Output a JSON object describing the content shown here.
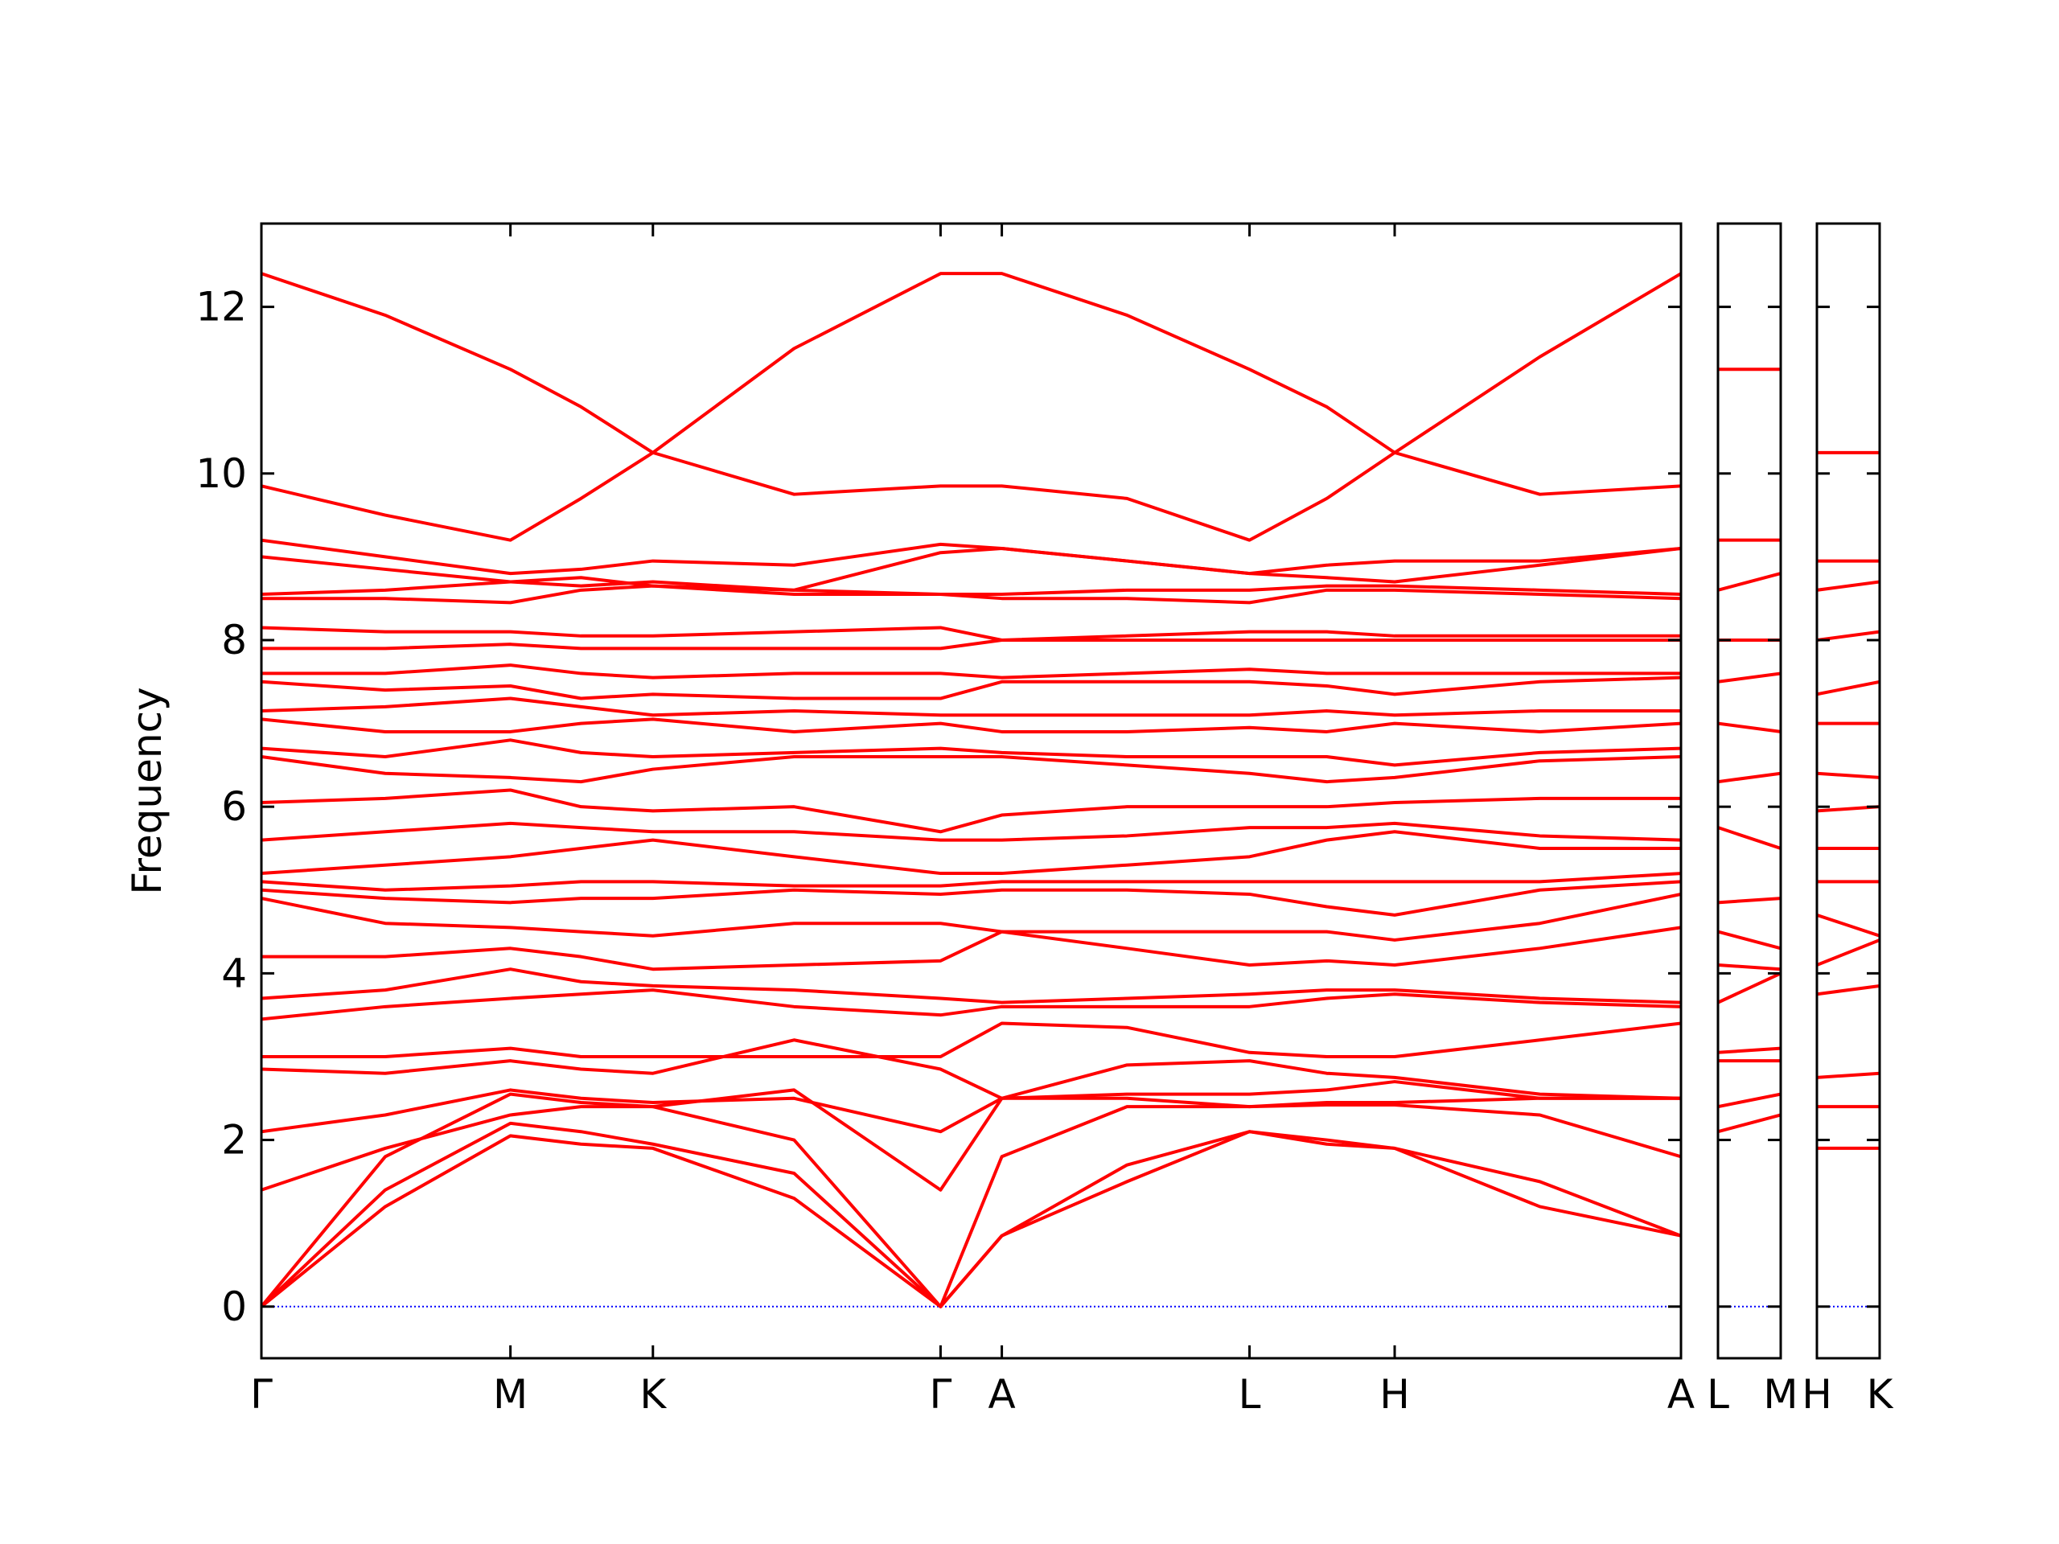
{
  "chart_data": [
    {
      "type": "line",
      "ylabel": "Frequency",
      "color": "#ff0000",
      "show_ytick_labels": true,
      "zero_line": {
        "y": 0,
        "color": "#0000ff"
      },
      "xlim": [
        0,
        10.66
      ],
      "ylim": [
        -0.62,
        13
      ],
      "yticks": [
        0,
        2,
        4,
        6,
        8,
        10,
        12
      ],
      "xticks": [
        {
          "value": 0,
          "label": "Γ"
        },
        {
          "value": 1.87,
          "label": "M"
        },
        {
          "value": 2.94,
          "label": "K"
        },
        {
          "value": 5.1,
          "label": "Γ"
        },
        {
          "value": 5.56,
          "label": "A"
        },
        {
          "value": 7.42,
          "label": "L"
        },
        {
          "value": 8.51,
          "label": "H"
        },
        {
          "value": 10.66,
          "label": "A"
        }
      ],
      "x": [
        0,
        0.93,
        1.87,
        2.4,
        2.94,
        4.0,
        5.1,
        5.56,
        6.5,
        7.42,
        8.0,
        8.51,
        9.6,
        10.66
      ],
      "series": [
        {
          "values": [
            0,
            1.2,
            2.05,
            1.95,
            1.9,
            1.3,
            0,
            0.85,
            1.5,
            2.1,
            1.95,
            1.9,
            1.5,
            0.85
          ]
        },
        {
          "values": [
            0,
            1.4,
            2.2,
            2.1,
            1.95,
            1.6,
            0,
            0.85,
            1.7,
            2.1,
            2.0,
            1.9,
            1.2,
            0.85
          ]
        },
        {
          "values": [
            0,
            1.8,
            2.55,
            2.45,
            2.4,
            2.0,
            0,
            1.8,
            2.4,
            2.4,
            2.42,
            2.42,
            2.3,
            1.8
          ]
        },
        {
          "values": [
            1.4,
            1.9,
            2.3,
            2.4,
            2.4,
            2.6,
            1.4,
            2.5,
            2.5,
            2.4,
            2.45,
            2.45,
            2.5,
            2.5
          ]
        },
        {
          "values": [
            2.1,
            2.3,
            2.6,
            2.5,
            2.45,
            2.5,
            2.1,
            2.5,
            2.55,
            2.55,
            2.6,
            2.7,
            2.5,
            2.5
          ]
        },
        {
          "values": [
            2.85,
            2.8,
            2.95,
            2.85,
            2.8,
            3.2,
            2.85,
            2.5,
            2.9,
            2.95,
            2.8,
            2.75,
            2.55,
            2.5
          ]
        },
        {
          "values": [
            3.0,
            3.0,
            3.1,
            3.0,
            3.0,
            3.0,
            3.0,
            3.4,
            3.35,
            3.05,
            3.0,
            3.0,
            3.2,
            3.4
          ]
        },
        {
          "values": [
            3.45,
            3.6,
            3.7,
            3.75,
            3.8,
            3.6,
            3.5,
            3.6,
            3.6,
            3.6,
            3.7,
            3.75,
            3.65,
            3.6
          ]
        },
        {
          "values": [
            3.7,
            3.8,
            4.05,
            3.9,
            3.85,
            3.8,
            3.7,
            3.65,
            3.7,
            3.75,
            3.8,
            3.8,
            3.7,
            3.65
          ]
        },
        {
          "values": [
            4.2,
            4.2,
            4.3,
            4.2,
            4.05,
            4.1,
            4.15,
            4.5,
            4.3,
            4.1,
            4.15,
            4.1,
            4.3,
            4.55
          ]
        },
        {
          "values": [
            4.9,
            4.6,
            4.55,
            4.5,
            4.45,
            4.6,
            4.6,
            4.5,
            4.5,
            4.5,
            4.5,
            4.4,
            4.6,
            4.95
          ]
        },
        {
          "values": [
            5.0,
            4.9,
            4.85,
            4.9,
            4.9,
            5.0,
            4.95,
            5.0,
            5.0,
            4.95,
            4.8,
            4.7,
            5.0,
            5.1
          ]
        },
        {
          "values": [
            5.1,
            5.0,
            5.05,
            5.1,
            5.1,
            5.05,
            5.05,
            5.1,
            5.1,
            5.1,
            5.1,
            5.1,
            5.1,
            5.2
          ]
        },
        {
          "values": [
            5.2,
            5.3,
            5.4,
            5.5,
            5.6,
            5.4,
            5.2,
            5.2,
            5.3,
            5.4,
            5.6,
            5.7,
            5.5,
            5.5
          ]
        },
        {
          "values": [
            5.6,
            5.7,
            5.8,
            5.75,
            5.7,
            5.7,
            5.6,
            5.6,
            5.65,
            5.75,
            5.75,
            5.8,
            5.65,
            5.6
          ]
        },
        {
          "values": [
            6.05,
            6.1,
            6.2,
            6.0,
            5.95,
            6.0,
            5.7,
            5.9,
            6.0,
            6.0,
            6.0,
            6.05,
            6.1,
            6.1
          ]
        },
        {
          "values": [
            6.6,
            6.4,
            6.35,
            6.3,
            6.45,
            6.6,
            6.6,
            6.6,
            6.5,
            6.4,
            6.3,
            6.35,
            6.55,
            6.6
          ]
        },
        {
          "values": [
            6.7,
            6.6,
            6.8,
            6.65,
            6.6,
            6.65,
            6.7,
            6.65,
            6.6,
            6.6,
            6.6,
            6.5,
            6.65,
            6.7
          ]
        },
        {
          "values": [
            7.05,
            6.9,
            6.9,
            7.0,
            7.05,
            6.9,
            7.0,
            6.9,
            6.9,
            6.95,
            6.9,
            7.0,
            6.9,
            7.0
          ]
        },
        {
          "values": [
            7.15,
            7.2,
            7.3,
            7.2,
            7.1,
            7.15,
            7.1,
            7.1,
            7.1,
            7.1,
            7.15,
            7.1,
            7.15,
            7.15
          ]
        },
        {
          "values": [
            7.5,
            7.4,
            7.45,
            7.3,
            7.35,
            7.3,
            7.3,
            7.5,
            7.5,
            7.5,
            7.45,
            7.35,
            7.5,
            7.55
          ]
        },
        {
          "values": [
            7.6,
            7.6,
            7.7,
            7.6,
            7.55,
            7.6,
            7.6,
            7.55,
            7.6,
            7.65,
            7.6,
            7.6,
            7.6,
            7.6
          ]
        },
        {
          "values": [
            7.9,
            7.9,
            7.95,
            7.9,
            7.9,
            7.9,
            7.9,
            8.0,
            8.0,
            8.0,
            8.0,
            8.0,
            8.0,
            8.0
          ]
        },
        {
          "values": [
            8.15,
            8.1,
            8.1,
            8.05,
            8.05,
            8.1,
            8.15,
            8.0,
            8.05,
            8.1,
            8.1,
            8.05,
            8.05,
            8.05
          ]
        },
        {
          "values": [
            8.5,
            8.5,
            8.45,
            8.6,
            8.65,
            8.55,
            8.55,
            8.55,
            8.6,
            8.6,
            8.65,
            8.65,
            8.6,
            8.55
          ]
        },
        {
          "values": [
            8.55,
            8.6,
            8.7,
            8.65,
            8.7,
            8.6,
            8.55,
            8.5,
            8.5,
            8.45,
            8.6,
            8.6,
            8.55,
            8.5
          ]
        },
        {
          "values": [
            9.0,
            8.85,
            8.7,
            8.75,
            8.65,
            8.6,
            9.05,
            9.1,
            8.95,
            8.8,
            8.75,
            8.7,
            8.9,
            9.1
          ]
        },
        {
          "values": [
            9.2,
            9.0,
            8.8,
            8.85,
            8.95,
            8.9,
            9.15,
            9.1,
            8.95,
            8.8,
            8.9,
            8.95,
            8.95,
            9.1
          ]
        },
        {
          "values": [
            9.85,
            9.5,
            9.2,
            9.7,
            10.25,
            9.75,
            9.85,
            9.85,
            9.7,
            9.2,
            9.7,
            10.25,
            9.75,
            9.85
          ]
        },
        {
          "values": [
            12.4,
            11.9,
            11.25,
            10.8,
            10.25,
            11.5,
            12.4,
            12.4,
            11.9,
            11.25,
            10.8,
            10.25,
            11.4,
            12.4
          ]
        }
      ]
    },
    {
      "type": "line",
      "color": "#ff0000",
      "show_ytick_labels": false,
      "zero_line": {
        "y": 0,
        "color": "#0000ff"
      },
      "xlim": [
        0,
        0.47
      ],
      "ylim": [
        -0.62,
        13
      ],
      "yticks": [
        0,
        2,
        4,
        6,
        8,
        10,
        12
      ],
      "xticks": [
        {
          "value": 0,
          "label": "L"
        },
        {
          "value": 0.47,
          "label": "M"
        }
      ],
      "x": [
        0,
        0.47
      ],
      "series": [
        {
          "values": [
            2.1,
            2.3
          ]
        },
        {
          "values": [
            2.4,
            2.55
          ]
        },
        {
          "values": [
            2.95,
            2.95
          ]
        },
        {
          "values": [
            3.05,
            3.1
          ]
        },
        {
          "values": [
            3.65,
            4.0
          ]
        },
        {
          "values": [
            4.1,
            4.05
          ]
        },
        {
          "values": [
            4.5,
            4.3
          ]
        },
        {
          "values": [
            4.85,
            4.9
          ]
        },
        {
          "values": [
            5.75,
            5.5
          ]
        },
        {
          "values": [
            6.3,
            6.4
          ]
        },
        {
          "values": [
            7.0,
            6.9
          ]
        },
        {
          "values": [
            7.5,
            7.6
          ]
        },
        {
          "values": [
            8.0,
            8.0
          ]
        },
        {
          "values": [
            8.6,
            8.8
          ]
        },
        {
          "values": [
            9.2,
            9.2
          ]
        },
        {
          "values": [
            11.25,
            11.25
          ]
        }
      ]
    },
    {
      "type": "line",
      "color": "#ff0000",
      "show_ytick_labels": false,
      "zero_line": {
        "y": 0,
        "color": "#0000ff"
      },
      "xlim": [
        0,
        0.47
      ],
      "ylim": [
        -0.62,
        13
      ],
      "yticks": [
        0,
        2,
        4,
        6,
        8,
        10,
        12
      ],
      "xticks": [
        {
          "value": 0,
          "label": "H"
        },
        {
          "value": 0.47,
          "label": "K"
        }
      ],
      "x": [
        0,
        0.47
      ],
      "series": [
        {
          "values": [
            1.9,
            1.9
          ]
        },
        {
          "values": [
            2.4,
            2.4
          ]
        },
        {
          "values": [
            2.75,
            2.8
          ]
        },
        {
          "values": [
            3.75,
            3.85
          ]
        },
        {
          "values": [
            4.1,
            4.4
          ]
        },
        {
          "values": [
            4.7,
            4.45
          ]
        },
        {
          "values": [
            5.1,
            5.1
          ]
        },
        {
          "values": [
            5.5,
            5.5
          ]
        },
        {
          "values": [
            5.95,
            6.0
          ]
        },
        {
          "values": [
            6.4,
            6.35
          ]
        },
        {
          "values": [
            7.0,
            7.0
          ]
        },
        {
          "values": [
            7.35,
            7.5
          ]
        },
        {
          "values": [
            8.0,
            8.1
          ]
        },
        {
          "values": [
            8.6,
            8.7
          ]
        },
        {
          "values": [
            8.95,
            8.95
          ]
        },
        {
          "values": [
            10.25,
            10.25
          ]
        }
      ]
    }
  ]
}
